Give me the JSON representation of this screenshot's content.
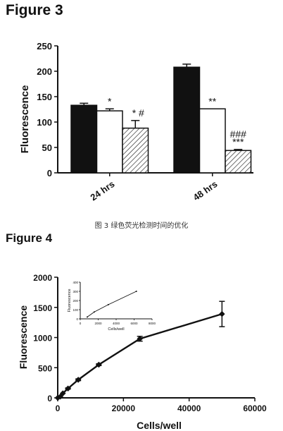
{
  "figure3": {
    "title": "Figure 3",
    "caption": "图 3   绿色荧光检测时间的优化",
    "chart_data": {
      "type": "bar",
      "ylabel": "Fluorescence",
      "xlabel": "",
      "ylim": [
        0,
        250
      ],
      "yticks": [
        0,
        50,
        100,
        150,
        200,
        250
      ],
      "categories": [
        "24 hrs",
        "48 hrs"
      ],
      "series": [
        {
          "fill": "black",
          "values": [
            133,
            208
          ],
          "errors": [
            4,
            6
          ]
        },
        {
          "fill": "white",
          "values": [
            122,
            126
          ],
          "errors": [
            4,
            0
          ]
        },
        {
          "fill": "hatched",
          "values": [
            88,
            44
          ],
          "errors": [
            15,
            2
          ]
        }
      ],
      "annotations": [
        {
          "category": 0,
          "series": 1,
          "text": "*"
        },
        {
          "category": 0,
          "series": 2,
          "text": "* #"
        },
        {
          "category": 1,
          "series": 1,
          "text": "**"
        },
        {
          "category": 1,
          "series": 2,
          "text": "###"
        },
        {
          "category": 1,
          "series": 2,
          "text": "***"
        }
      ]
    }
  },
  "figure4": {
    "title": "Figure 4",
    "chart_data": {
      "type": "line",
      "xlabel": "Cells/well",
      "ylabel": "Fluorescence",
      "xlim": [
        0,
        60000
      ],
      "ylim": [
        0,
        2000
      ],
      "xticks": [
        0,
        20000,
        40000,
        60000
      ],
      "yticks": [
        0,
        500,
        1000,
        1500,
        2000
      ],
      "x": [
        0,
        780,
        1560,
        3125,
        6250,
        12500,
        25000,
        50000
      ],
      "y": [
        0,
        20,
        75,
        155,
        300,
        550,
        980,
        1390
      ],
      "errors": [
        0,
        0,
        0,
        10,
        15,
        15,
        40,
        210
      ],
      "inset": {
        "type": "line",
        "xlabel": "Cells/well",
        "ylabel": "Fluorescence",
        "xlim": [
          0,
          8000
        ],
        "ylim": [
          0,
          400
        ],
        "xticks": [
          0,
          2000,
          4000,
          6000,
          8000
        ],
        "yticks": [
          0,
          100,
          200,
          300,
          400
        ],
        "x": [
          780,
          1560,
          3125,
          6250
        ],
        "y": [
          20,
          75,
          155,
          300
        ]
      }
    }
  }
}
